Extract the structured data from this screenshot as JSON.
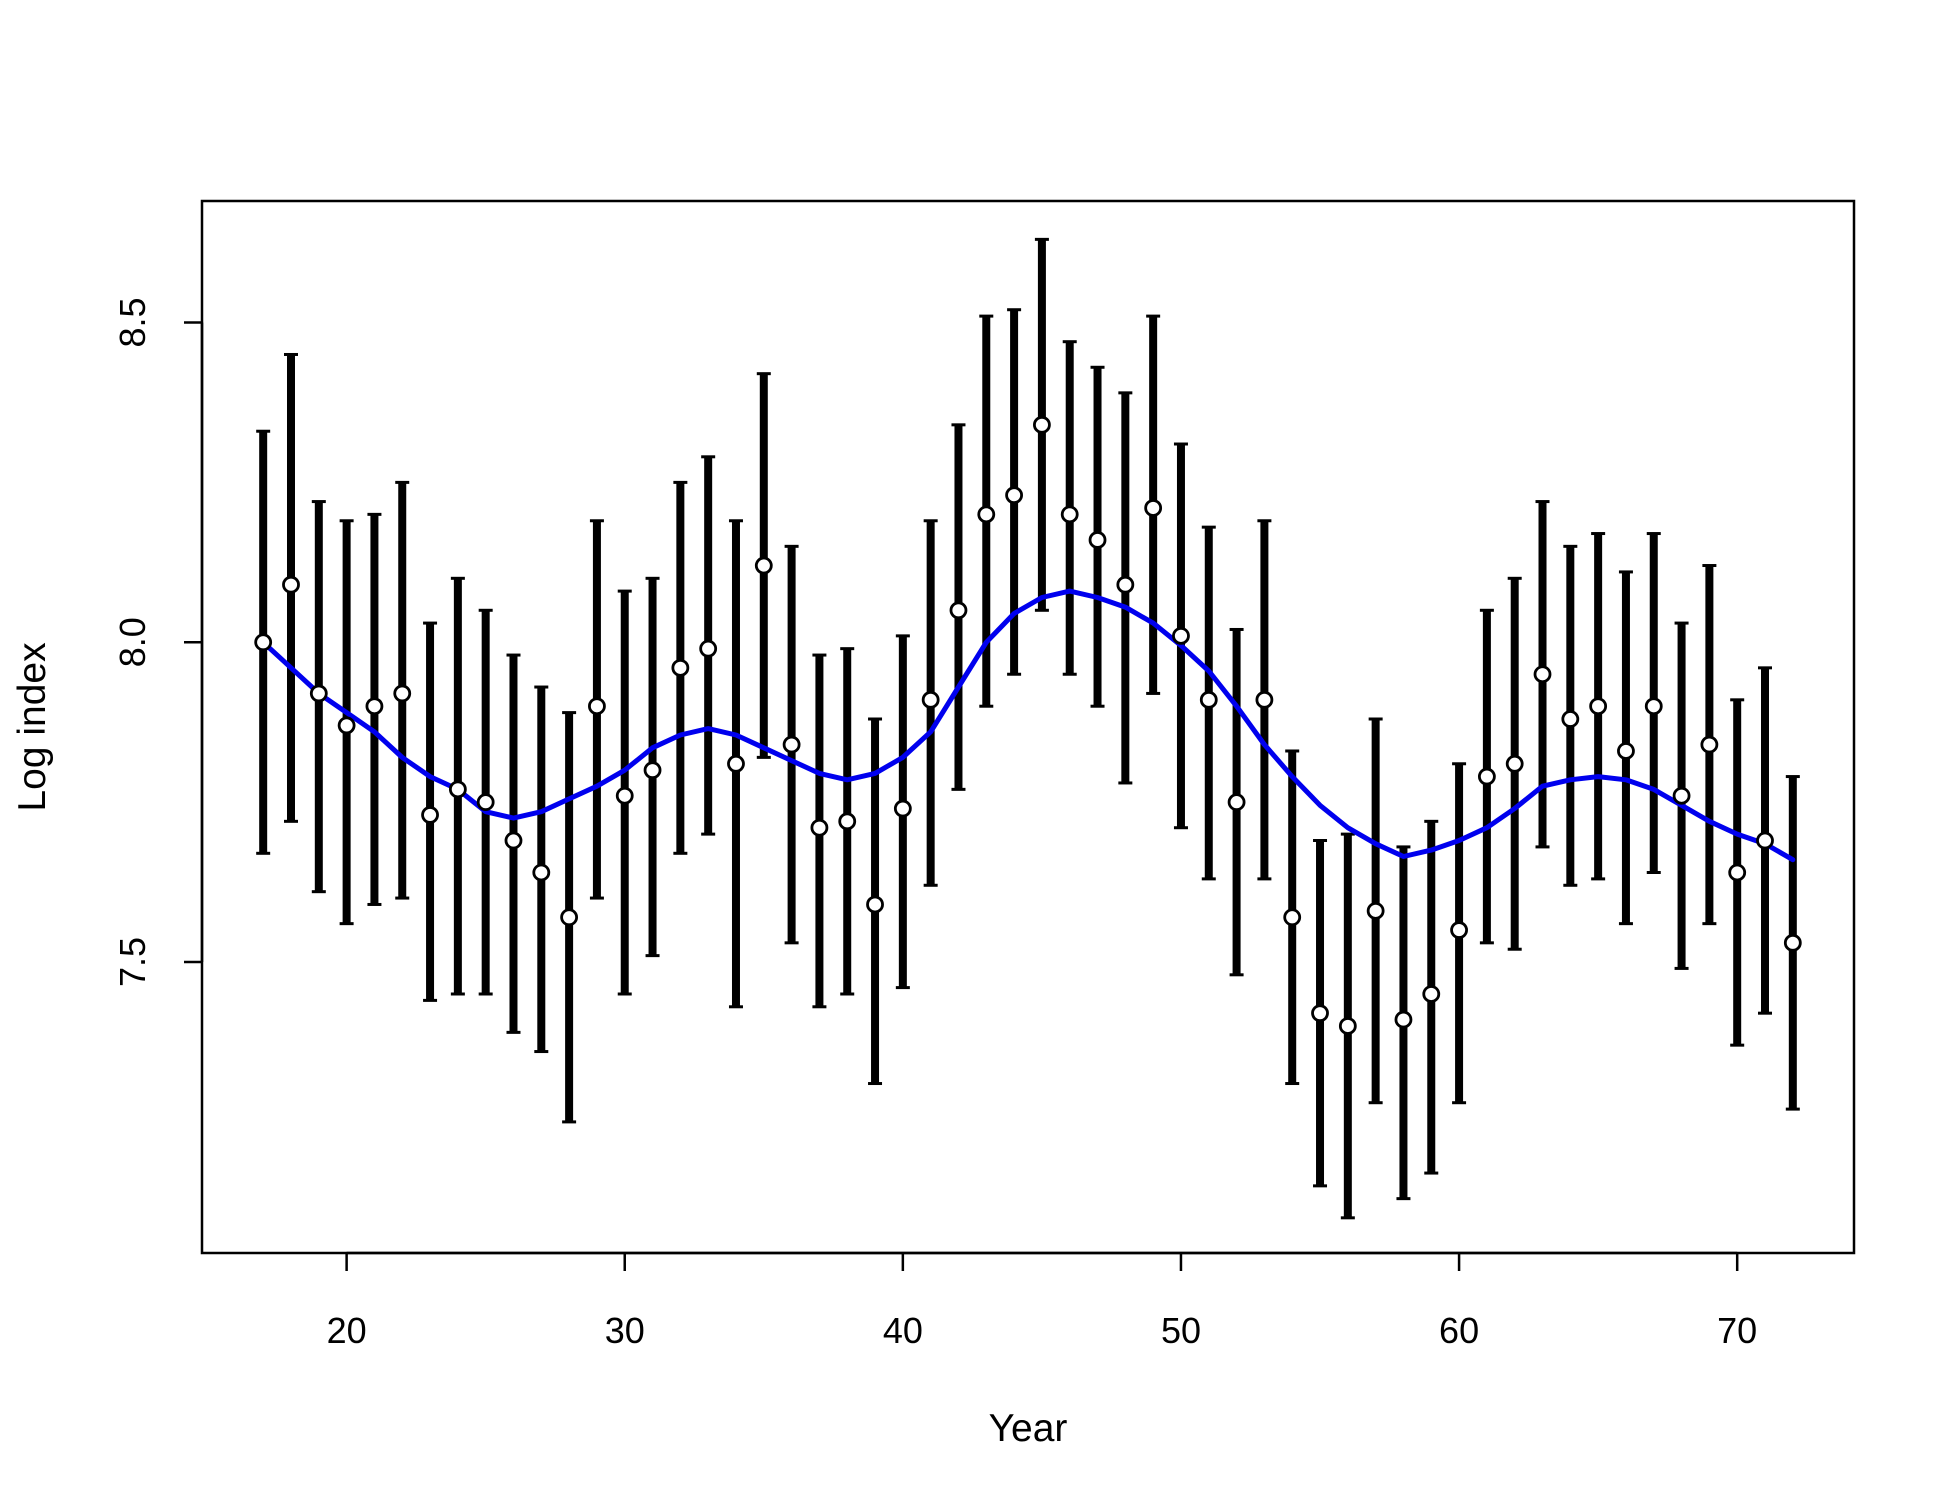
{
  "chart_data": {
    "type": "scatter",
    "title": "",
    "xlabel": "Year",
    "ylabel": "Log index",
    "xlim": [
      14.8,
      74.2
    ],
    "ylim": [
      7.045,
      8.69
    ],
    "xticks": [
      20,
      30,
      40,
      50,
      60,
      70
    ],
    "yticks": [
      7.5,
      8.0,
      8.5
    ],
    "xtick_labels": [
      "20",
      "30",
      "40",
      "50",
      "60",
      "70"
    ],
    "ytick_labels": [
      "7.5",
      "8.0",
      "8.5"
    ],
    "grid": false,
    "colors": {
      "points_fill": "#ffffff",
      "points_stroke": "#000000",
      "error_bars": "#000000",
      "trend": "#0000ee"
    },
    "series": [
      {
        "kind": "points_with_error_bars",
        "x": [
          17,
          18,
          19,
          20,
          21,
          22,
          23,
          24,
          25,
          26,
          27,
          28,
          29,
          30,
          31,
          32,
          33,
          34,
          35,
          36,
          37,
          38,
          39,
          40,
          41,
          42,
          43,
          44,
          45,
          46,
          47,
          48,
          49,
          50,
          51,
          52,
          53,
          54,
          55,
          56,
          57,
          58,
          59,
          60,
          61,
          62,
          63,
          64,
          65,
          66,
          67,
          68,
          69,
          70,
          71,
          72
        ],
        "y": [
          8.0,
          8.09,
          7.92,
          7.87,
          7.9,
          7.92,
          7.73,
          7.77,
          7.75,
          7.69,
          7.64,
          7.57,
          7.9,
          7.76,
          7.8,
          7.96,
          7.99,
          7.81,
          8.12,
          7.84,
          7.71,
          7.72,
          7.59,
          7.74,
          7.91,
          8.05,
          8.2,
          8.23,
          8.34,
          8.2,
          8.16,
          8.09,
          8.21,
          8.01,
          7.91,
          7.75,
          7.91,
          7.57,
          7.42,
          7.4,
          7.58,
          7.41,
          7.45,
          7.55,
          7.79,
          7.81,
          7.95,
          7.88,
          7.9,
          7.83,
          7.9,
          7.76,
          7.84,
          7.64,
          7.69,
          7.53
        ],
        "lower": [
          7.67,
          7.72,
          7.61,
          7.56,
          7.59,
          7.6,
          7.44,
          7.45,
          7.45,
          7.39,
          7.36,
          7.25,
          7.6,
          7.45,
          7.51,
          7.67,
          7.7,
          7.43,
          7.82,
          7.53,
          7.43,
          7.45,
          7.31,
          7.46,
          7.62,
          7.77,
          7.9,
          7.95,
          8.05,
          7.95,
          7.9,
          7.78,
          7.92,
          7.71,
          7.63,
          7.48,
          7.63,
          7.31,
          7.15,
          7.1,
          7.28,
          7.13,
          7.17,
          7.28,
          7.53,
          7.52,
          7.68,
          7.62,
          7.63,
          7.56,
          7.64,
          7.49,
          7.56,
          7.37,
          7.42,
          7.27
        ],
        "upper": [
          8.33,
          8.45,
          8.22,
          8.19,
          8.2,
          8.25,
          8.03,
          8.1,
          8.05,
          7.98,
          7.93,
          7.89,
          8.19,
          8.08,
          8.1,
          8.25,
          8.29,
          8.19,
          8.42,
          8.15,
          7.98,
          7.99,
          7.88,
          8.01,
          8.19,
          8.34,
          8.51,
          8.52,
          8.63,
          8.47,
          8.43,
          8.39,
          8.51,
          8.31,
          8.18,
          8.02,
          8.19,
          7.83,
          7.69,
          7.7,
          7.88,
          7.68,
          7.72,
          7.81,
          8.05,
          8.1,
          8.22,
          8.15,
          8.17,
          8.11,
          8.17,
          8.03,
          8.12,
          7.91,
          7.96,
          7.79
        ]
      },
      {
        "kind": "trend_line",
        "x": [
          17,
          18,
          19,
          20,
          21,
          22,
          23,
          24,
          25,
          26,
          27,
          28,
          29,
          30,
          31,
          32,
          33,
          34,
          35,
          36,
          37,
          38,
          39,
          40,
          41,
          42,
          43,
          44,
          45,
          46,
          47,
          48,
          49,
          50,
          51,
          52,
          53,
          54,
          55,
          56,
          57,
          58,
          59,
          60,
          61,
          62,
          63,
          64,
          65,
          66,
          67,
          68,
          69,
          70,
          71,
          72
        ],
        "y": [
          8.0,
          7.96,
          7.92,
          7.89,
          7.86,
          7.82,
          7.79,
          7.77,
          7.735,
          7.725,
          7.735,
          7.755,
          7.775,
          7.8,
          7.835,
          7.855,
          7.865,
          7.855,
          7.835,
          7.815,
          7.795,
          7.785,
          7.795,
          7.82,
          7.86,
          7.93,
          8.0,
          8.045,
          8.07,
          8.08,
          8.07,
          8.055,
          8.03,
          7.995,
          7.955,
          7.9,
          7.84,
          7.79,
          7.745,
          7.71,
          7.685,
          7.665,
          7.675,
          7.69,
          7.71,
          7.74,
          7.775,
          7.785,
          7.79,
          7.785,
          7.77,
          7.745,
          7.72,
          7.7,
          7.685,
          7.66
        ]
      }
    ]
  }
}
